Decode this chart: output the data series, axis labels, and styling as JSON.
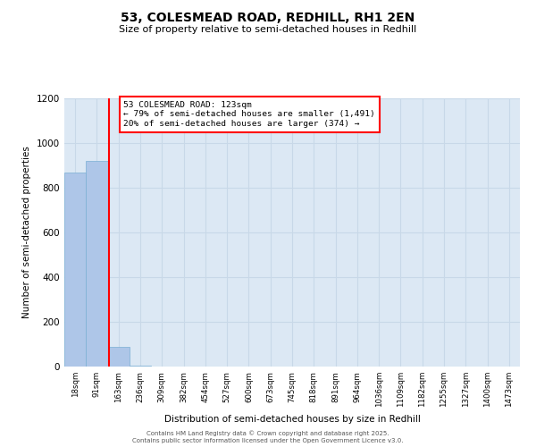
{
  "title": "53, COLESMEAD ROAD, REDHILL, RH1 2EN",
  "subtitle": "Size of property relative to semi-detached houses in Redhill",
  "xlabel": "Distribution of semi-detached houses by size in Redhill",
  "ylabel": "Number of semi-detached properties",
  "annotation_line1": "53 COLESMEAD ROAD: 123sqm",
  "annotation_line2": "← 79% of semi-detached houses are smaller (1,491)",
  "annotation_line3": "20% of semi-detached houses are larger (374) →",
  "bin_labels": [
    "18sqm",
    "91sqm",
    "163sqm",
    "236sqm",
    "309sqm",
    "382sqm",
    "454sqm",
    "527sqm",
    "600sqm",
    "673sqm",
    "745sqm",
    "818sqm",
    "891sqm",
    "964sqm",
    "1036sqm",
    "1109sqm",
    "1182sqm",
    "1255sqm",
    "1327sqm",
    "1400sqm",
    "1473sqm"
  ],
  "bin_values": [
    870,
    920,
    90,
    5,
    0,
    0,
    0,
    0,
    0,
    0,
    0,
    0,
    0,
    0,
    0,
    0,
    0,
    0,
    0,
    0,
    0
  ],
  "bar_color": "#aec6e8",
  "bar_edge_color": "#7aafd4",
  "red_line_x": 1.55,
  "ylim": [
    0,
    1200
  ],
  "yticks": [
    0,
    200,
    400,
    600,
    800,
    1000,
    1200
  ],
  "grid_color": "#c8d8e8",
  "bg_color": "#dce8f4",
  "footer1": "Contains HM Land Registry data © Crown copyright and database right 2025.",
  "footer2": "Contains public sector information licensed under the Open Government Licence v3.0."
}
